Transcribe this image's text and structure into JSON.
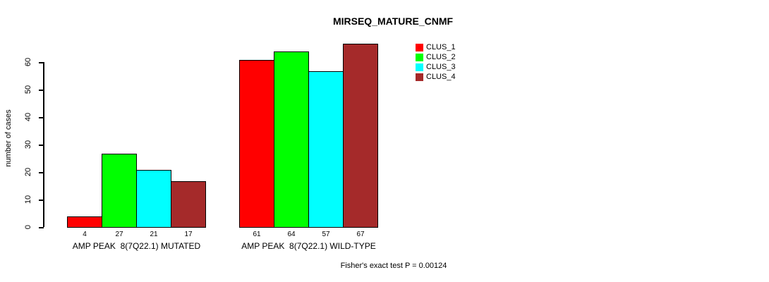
{
  "title": "MIRSEQ_MATURE_CNMF",
  "y_axis_label": "number of cases",
  "footer": "Fisher's exact test P = 0.00124",
  "chart_data": {
    "type": "bar",
    "title": "MIRSEQ_MATURE_CNMF",
    "xlabel": "",
    "ylabel": "number of cases",
    "ylim": [
      0,
      60
    ],
    "yticks": [
      0,
      10,
      20,
      30,
      40,
      50,
      60
    ],
    "grid": false,
    "legend_position": "top-right",
    "bar_borders": true,
    "categories": [
      "AMP PEAK  8(7Q22.1) MUTATED",
      "AMP PEAK  8(7Q22.1) WILD-TYPE"
    ],
    "series": [
      {
        "name": "CLUS_1",
        "color": "#ff0000",
        "values": [
          4,
          61
        ]
      },
      {
        "name": "CLUS_2",
        "color": "#00ff00",
        "values": [
          27,
          64
        ]
      },
      {
        "name": "CLUS_3",
        "color": "#00ffff",
        "values": [
          21,
          57
        ]
      },
      {
        "name": "CLUS_4",
        "color": "#a52a2a",
        "values": [
          17,
          67
        ]
      }
    ],
    "bar_value_labels": [
      [
        4,
        27,
        21,
        17
      ],
      [
        61,
        64,
        57,
        67
      ]
    ],
    "annotation": "Fisher's exact test P = 0.00124"
  }
}
